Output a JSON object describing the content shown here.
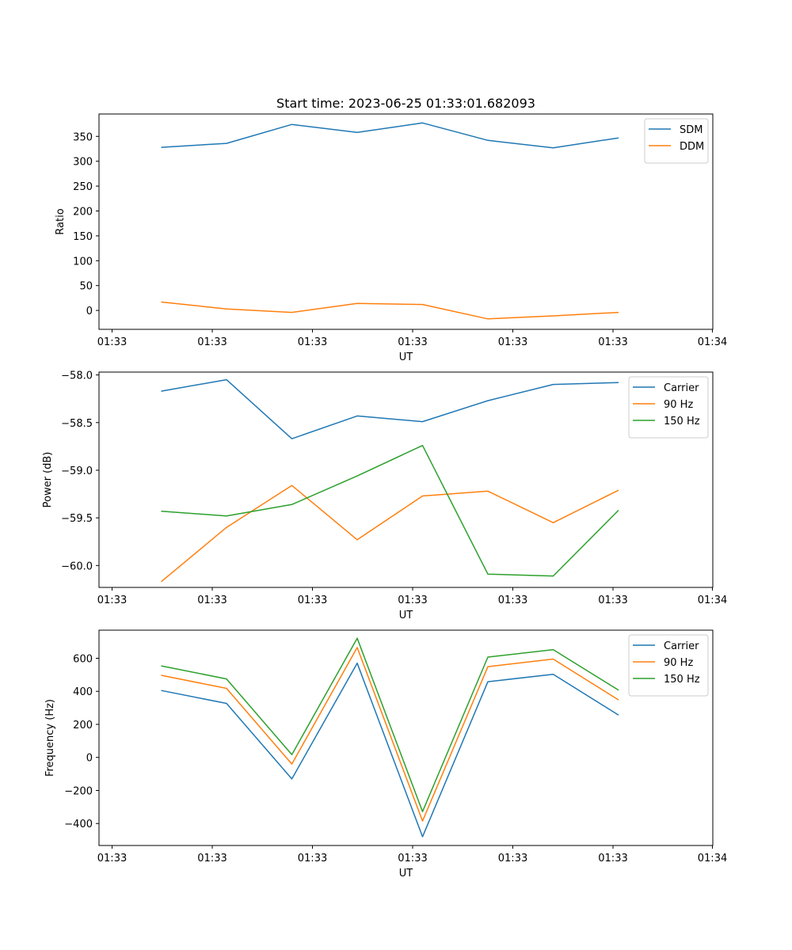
{
  "title": "Start time: 2023-06-25 01:33:01.682093",
  "chart_data": [
    {
      "type": "line",
      "title": "Start time: 2023-06-25 01:33:01.682093",
      "xlabel": "UT",
      "ylabel": "Ratio",
      "x_tick_labels": [
        "01:33",
        "01:33",
        "01:33",
        "01:33",
        "01:33",
        "01:33",
        "01:34"
      ],
      "y_ticks": [
        0,
        50,
        100,
        150,
        200,
        250,
        300,
        350
      ],
      "ylim": [
        -38,
        395
      ],
      "grid": false,
      "legend": "upper right",
      "series": [
        {
          "name": "SDM",
          "color": "#1f77b4",
          "values": [
            328,
            336,
            374,
            358,
            377,
            342,
            327,
            347
          ]
        },
        {
          "name": "DDM",
          "color": "#ff7f0e",
          "values": [
            17,
            3,
            -4,
            14,
            12,
            -17,
            -11,
            -4
          ]
        }
      ]
    },
    {
      "type": "line",
      "xlabel": "UT",
      "ylabel": "Power (dB)",
      "x_tick_labels": [
        "01:33",
        "01:33",
        "01:33",
        "01:33",
        "01:33",
        "01:33",
        "01:34"
      ],
      "y_ticks": [
        -60.0,
        -59.5,
        -59.0,
        -58.5,
        -58.0
      ],
      "y_tick_labels": [
        "−60.0",
        "−59.5",
        "−59.0",
        "−58.5",
        "−58.0"
      ],
      "ylim": [
        -60.23,
        -57.97
      ],
      "grid": false,
      "legend": "upper right",
      "series": [
        {
          "name": "Carrier",
          "color": "#1f77b4",
          "values": [
            -58.17,
            -58.05,
            -58.67,
            -58.43,
            -58.49,
            -58.27,
            -58.1,
            -58.08
          ]
        },
        {
          "name": "90 Hz",
          "color": "#ff7f0e",
          "values": [
            -60.17,
            -59.6,
            -59.16,
            -59.73,
            -59.27,
            -59.22,
            -59.55,
            -59.21
          ]
        },
        {
          "name": "150 Hz",
          "color": "#2ca02c",
          "values": [
            -59.43,
            -59.48,
            -59.36,
            -59.06,
            -58.74,
            -60.09,
            -60.11,
            -59.42
          ]
        }
      ]
    },
    {
      "type": "line",
      "xlabel": "UT",
      "ylabel": "Frequency (Hz)",
      "x_tick_labels": [
        "01:33",
        "01:33",
        "01:33",
        "01:33",
        "01:33",
        "01:33",
        "01:34"
      ],
      "y_ticks": [
        -400,
        -200,
        0,
        200,
        400,
        600
      ],
      "y_tick_labels": [
        "−400",
        "−200",
        "0",
        "200",
        "400",
        "600"
      ],
      "ylim": [
        -533,
        770
      ],
      "grid": false,
      "legend": "upper right",
      "series": [
        {
          "name": "Carrier",
          "color": "#1f77b4",
          "values": [
            405,
            327,
            -130,
            570,
            -480,
            458,
            503,
            256
          ]
        },
        {
          "name": "90 Hz",
          "color": "#ff7f0e",
          "values": [
            497,
            418,
            -40,
            665,
            -385,
            549,
            595,
            348
          ]
        },
        {
          "name": "150 Hz",
          "color": "#2ca02c",
          "values": [
            554,
            475,
            17,
            721,
            -328,
            607,
            652,
            407
          ]
        }
      ]
    }
  ]
}
